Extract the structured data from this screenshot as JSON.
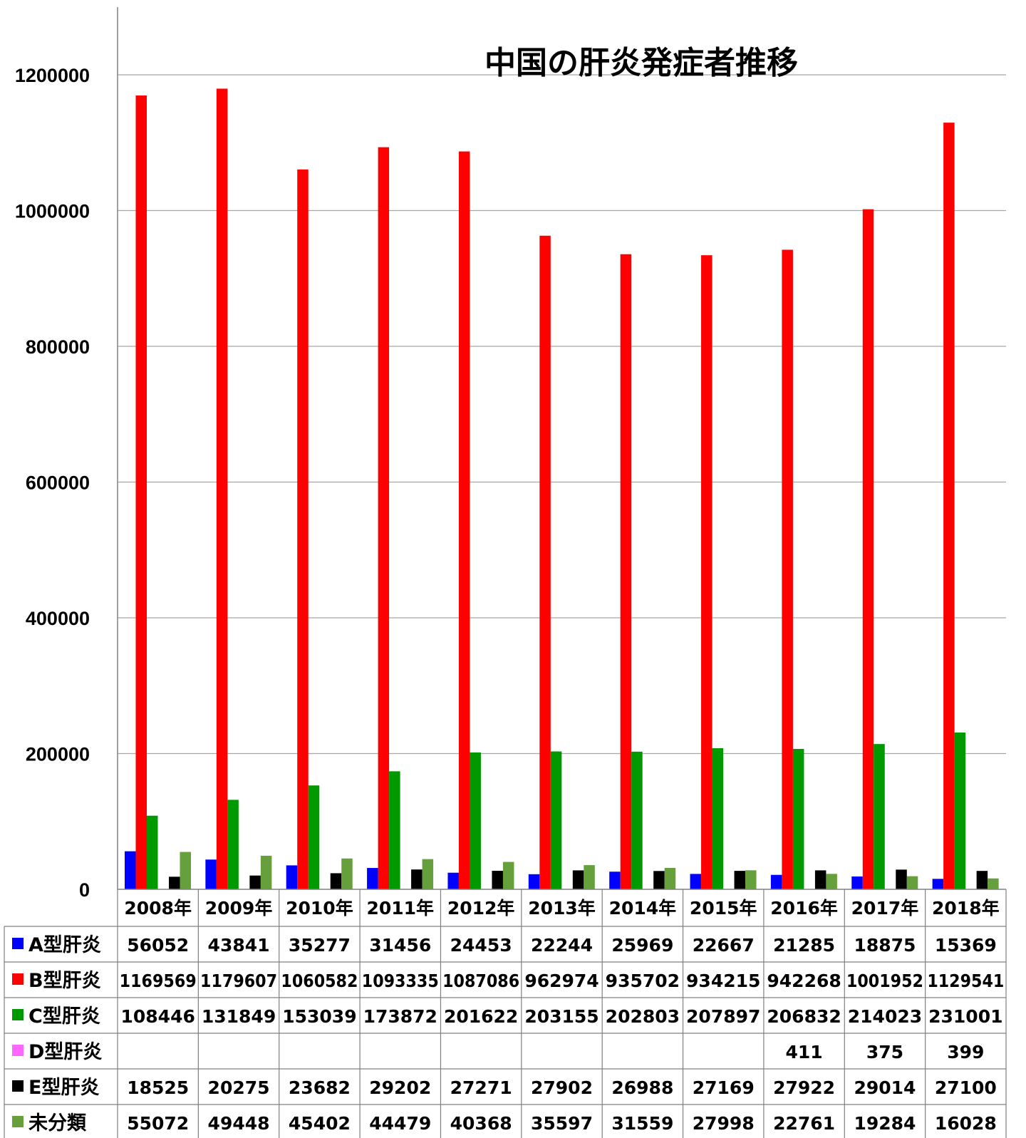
{
  "chart_data": {
    "type": "bar",
    "title": "中国の肝炎発症者推移",
    "categories": [
      "2008年",
      "2009年",
      "2010年",
      "2011年",
      "2012年",
      "2013年",
      "2014年",
      "2015年",
      "2016年",
      "2017年",
      "2018年"
    ],
    "ylim": [
      0,
      1300000
    ],
    "yticks": [
      "0",
      "200000",
      "400000",
      "600000",
      "800000",
      "1000000",
      "1200000"
    ],
    "ytick_values": [
      0,
      200000,
      400000,
      600000,
      800000,
      1000000,
      1200000
    ],
    "grid": true,
    "legend": "data-table",
    "series": [
      {
        "name": "A型肝炎",
        "color": "#0000ff",
        "values": [
          56052,
          43841,
          35277,
          31456,
          24453,
          22244,
          25969,
          22667,
          21285,
          18875,
          15369
        ],
        "labels": [
          "56052",
          "43841",
          "35277",
          "31456",
          "24453",
          "22244",
          "25969",
          "22667",
          "21285",
          "18875",
          "15369"
        ]
      },
      {
        "name": "B型肝炎",
        "color": "#ff0000",
        "values": [
          1169569,
          1179607,
          1060582,
          1093335,
          1087086,
          962974,
          935702,
          934215,
          942268,
          1001952,
          1129541
        ],
        "labels": [
          "1169569",
          "1179607",
          "1060582",
          "1093335",
          "1087086",
          "962974",
          "935702",
          "934215",
          "942268",
          "1001952",
          "1129541"
        ]
      },
      {
        "name": "C型肝炎",
        "color": "#009900",
        "values": [
          108446,
          131849,
          153039,
          173872,
          201622,
          203155,
          202803,
          207897,
          206832,
          214023,
          231001
        ],
        "labels": [
          "108446",
          "131849",
          "153039",
          "173872",
          "201622",
          "203155",
          "202803",
          "207897",
          "206832",
          "214023",
          "231001"
        ]
      },
      {
        "name": "D型肝炎",
        "color": "#ff66ff",
        "values": [
          null,
          null,
          null,
          null,
          null,
          null,
          null,
          null,
          411,
          375,
          399
        ],
        "labels": [
          "",
          "",
          "",
          "",
          "",
          "",
          "",
          "",
          "411",
          "375",
          "399"
        ]
      },
      {
        "name": "E型肝炎",
        "color": "#000000",
        "values": [
          18525,
          20275,
          23682,
          29202,
          27271,
          27902,
          26988,
          27169,
          27922,
          29014,
          27100
        ],
        "labels": [
          "18525",
          "20275",
          "23682",
          "29202",
          "27271",
          "27902",
          "26988",
          "27169",
          "27922",
          "29014",
          "27100"
        ]
      },
      {
        "name": "未分類",
        "color": "#66a03c",
        "values": [
          55072,
          49448,
          45402,
          44479,
          40368,
          35597,
          31559,
          27998,
          22761,
          19284,
          16028
        ],
        "labels": [
          "55072",
          "49448",
          "45402",
          "44479",
          "40368",
          "35597",
          "31559",
          "27998",
          "22761",
          "19284",
          "16028"
        ]
      }
    ]
  }
}
